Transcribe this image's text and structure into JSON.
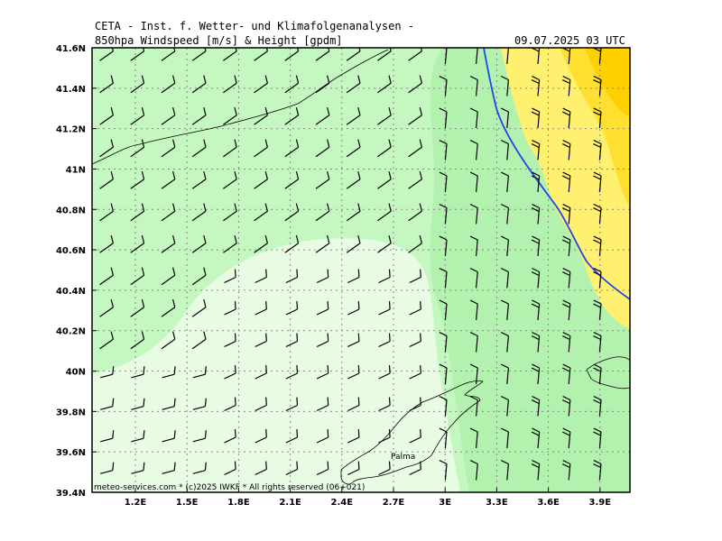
{
  "header": {
    "line1": "CETA - Inst. f. Wetter- und Klimafolgenanalysen -",
    "line2_left": "850hpa Windspeed [m/s] & Height [gpdm]",
    "line2_right": "09.07.2025 03 UTC"
  },
  "axes": {
    "lat_labels": [
      "41.6N",
      "41.4N",
      "41.2N",
      "41N",
      "40.8N",
      "40.6N",
      "40.4N",
      "40.2N",
      "40N",
      "39.8N",
      "39.6N",
      "39.4N"
    ],
    "lon_labels": [
      "1.2E",
      "1.5E",
      "1.8E",
      "2.1E",
      "2.4E",
      "2.7E",
      "3E",
      "3.3E",
      "3.6E",
      "3.9E"
    ]
  },
  "map": {
    "place_label": "Palma",
    "credit": "meteo-services.com * (c)2025 IWKF * All rights reserved (06+021)",
    "colors": {
      "very_light_green": "#e8fce4",
      "light_green": "#c4f8c0",
      "mid_green": "#b2f2ae",
      "light_yellow": "#fff070",
      "yellow": "#ffe030",
      "gold": "#ffd000",
      "height_contour": "#2244ee"
    }
  }
}
